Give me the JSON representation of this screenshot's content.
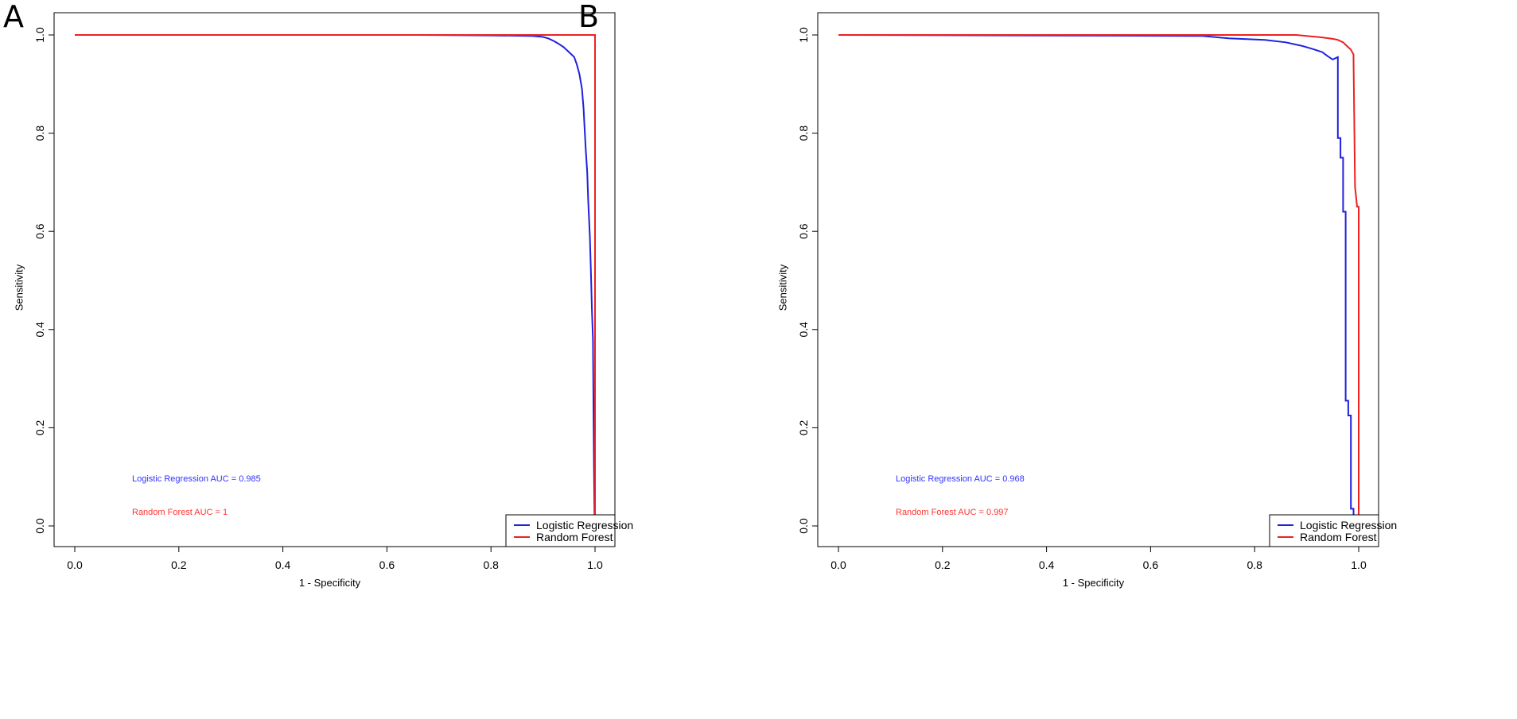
{
  "chart_data": [
    {
      "panel": "A",
      "type": "line",
      "title": "",
      "xlabel": "1 - Specificity",
      "ylabel": "Sensitivity",
      "xlim": [
        0,
        1
      ],
      "ylim": [
        0,
        1
      ],
      "xticks": [
        "0.0",
        "0.2",
        "0.4",
        "0.6",
        "0.8",
        "1.0"
      ],
      "yticks": [
        "0.0",
        "0.2",
        "0.4",
        "0.6",
        "0.8",
        "1.0"
      ],
      "grid": false,
      "legend": {
        "position": "bottom-right",
        "entries": [
          "Logistic Regression",
          "Random Forest"
        ]
      },
      "annotations": [
        {
          "text": "Logistic Regression AUC = 0.985",
          "color": "#3333ff"
        },
        {
          "text": "Random Forest AUC = 1",
          "color": "#ff3333"
        }
      ],
      "series": [
        {
          "name": "Logistic Regression",
          "color": "#2020e0",
          "x": [
            0,
            0.66,
            0.8,
            0.88,
            0.9,
            0.91,
            0.92,
            0.93,
            0.94,
            0.95,
            0.96,
            0.965,
            0.97,
            0.975,
            0.978,
            0.98,
            0.982,
            0.985,
            0.987,
            0.99,
            0.992,
            0.994,
            0.996,
            0.997,
            0.998,
            0.999,
            1.0
          ],
          "y": [
            1.0,
            1.0,
            0.999,
            0.998,
            0.996,
            0.993,
            0.988,
            0.982,
            0.975,
            0.965,
            0.955,
            0.94,
            0.92,
            0.89,
            0.85,
            0.81,
            0.77,
            0.72,
            0.66,
            0.59,
            0.52,
            0.44,
            0.38,
            0.25,
            0.12,
            0.03,
            0.0
          ]
        },
        {
          "name": "Random Forest",
          "color": "#ee2020",
          "x": [
            0,
            1.0,
            1.0
          ],
          "y": [
            1.0,
            1.0,
            0.0
          ]
        }
      ]
    },
    {
      "panel": "B",
      "type": "line",
      "title": "",
      "xlabel": "1 - Specificity",
      "ylabel": "Sensitivity",
      "xlim": [
        0,
        1
      ],
      "ylim": [
        0,
        1
      ],
      "xticks": [
        "0.0",
        "0.2",
        "0.4",
        "0.6",
        "0.8",
        "1.0"
      ],
      "yticks": [
        "0.0",
        "0.2",
        "0.4",
        "0.6",
        "0.8",
        "1.0"
      ],
      "grid": false,
      "legend": {
        "position": "bottom-right",
        "entries": [
          "Logistic Regression",
          "Random Forest"
        ]
      },
      "annotations": [
        {
          "text": "Logistic Regression AUC = 0.968",
          "color": "#3333ff"
        },
        {
          "text": "Random Forest AUC = 0.997",
          "color": "#ff3333"
        }
      ],
      "series": [
        {
          "name": "Logistic Regression",
          "color": "#2020e0",
          "x": [
            0,
            0.7,
            0.75,
            0.82,
            0.86,
            0.89,
            0.91,
            0.93,
            0.94,
            0.95,
            0.96,
            0.96,
            0.965,
            0.965,
            0.97,
            0.97,
            0.975,
            0.975,
            0.98,
            0.98,
            0.985,
            0.985,
            0.99,
            0.99
          ],
          "y": [
            1.0,
            0.998,
            0.993,
            0.99,
            0.985,
            0.978,
            0.972,
            0.965,
            0.957,
            0.95,
            0.955,
            0.79,
            0.79,
            0.75,
            0.75,
            0.64,
            0.64,
            0.255,
            0.255,
            0.225,
            0.225,
            0.035,
            0.035,
            0.0
          ]
        },
        {
          "name": "Random Forest",
          "color": "#ee2020",
          "x": [
            0,
            0.88,
            0.9,
            0.93,
            0.95,
            0.96,
            0.97,
            0.975,
            0.98,
            0.985,
            0.99,
            0.99,
            0.993,
            0.995,
            0.997,
            1.0,
            1.0
          ],
          "y": [
            1.0,
            1.0,
            0.998,
            0.995,
            0.992,
            0.99,
            0.985,
            0.98,
            0.975,
            0.97,
            0.96,
            0.95,
            0.69,
            0.67,
            0.65,
            0.65,
            0.0
          ]
        }
      ]
    }
  ]
}
